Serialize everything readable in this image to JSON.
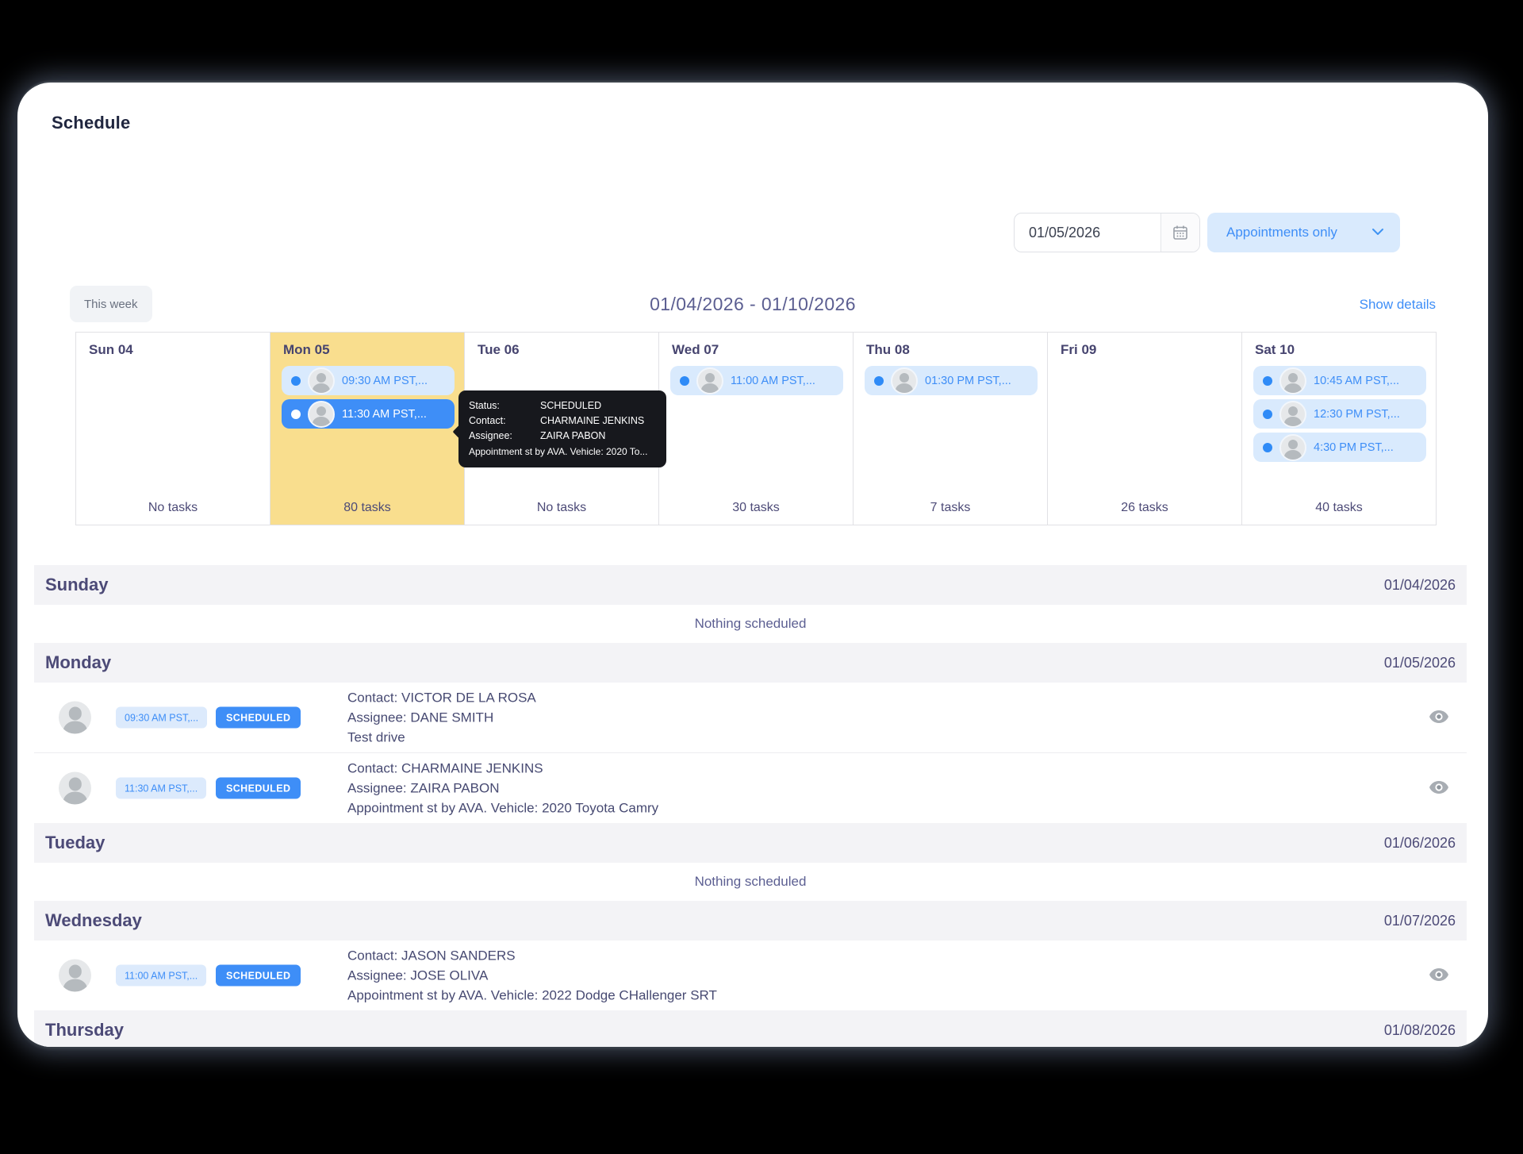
{
  "window": {
    "title": "Schedule"
  },
  "toolbar": {
    "date_input": {
      "value": "01/05/2026",
      "icon": "calendar-icon"
    },
    "filter_dropdown": {
      "value": "Appointments only",
      "icon": "chevron-down-icon"
    }
  },
  "week_nav": {
    "this_week_label": "This week",
    "range_label": "01/04/2026 - 01/10/2026",
    "show_details_label": "Show details"
  },
  "week_grid": {
    "days": [
      {
        "label": "Sun 04",
        "tasks": "No tasks",
        "highlight": false,
        "events": []
      },
      {
        "label": "Mon 05",
        "tasks": "80 tasks",
        "highlight": true,
        "events": [
          {
            "time": "09:30 AM PST,...",
            "selected": false
          },
          {
            "time": "11:30 AM PST,...",
            "selected": true
          }
        ]
      },
      {
        "label": "Tue 06",
        "tasks": "No tasks",
        "highlight": false,
        "events": []
      },
      {
        "label": "Wed 07",
        "tasks": "30 tasks",
        "highlight": false,
        "events": [
          {
            "time": "11:00 AM PST,...",
            "selected": false
          }
        ]
      },
      {
        "label": "Thu 08",
        "tasks": "7 tasks",
        "highlight": false,
        "events": [
          {
            "time": "01:30 PM PST,...",
            "selected": false
          }
        ]
      },
      {
        "label": "Fri 09",
        "tasks": "26 tasks",
        "highlight": false,
        "events": []
      },
      {
        "label": "Sat 10",
        "tasks": "40 tasks",
        "highlight": false,
        "events": [
          {
            "time": "10:45 AM PST,...",
            "selected": false
          },
          {
            "time": "12:30 PM PST,...",
            "selected": false
          },
          {
            "time": "4:30 PM PST,...",
            "selected": false
          }
        ]
      }
    ]
  },
  "tooltip": {
    "rows": [
      {
        "label": "Status:",
        "value": "SCHEDULED"
      },
      {
        "label": "Contact:",
        "value": "CHARMAINE JENKINS"
      },
      {
        "label": "Assignee:",
        "value": "ZAIRA PABON"
      }
    ],
    "note": "Appointment st by AVA. Vehicle: 2020 To..."
  },
  "agenda": {
    "empty_label": "Nothing scheduled",
    "days": [
      {
        "name": "Sunday",
        "date": "01/04/2026",
        "empty": true,
        "items": []
      },
      {
        "name": "Monday",
        "date": "01/05/2026",
        "empty": false,
        "items": [
          {
            "time": "09:30 AM PST,...",
            "status": "SCHEDULED",
            "lines": [
              "Contact: VICTOR DE LA ROSA",
              "Assignee: DANE SMITH",
              "Test drive"
            ]
          },
          {
            "time": "11:30 AM PST,...",
            "status": "SCHEDULED",
            "lines": [
              "Contact: CHARMAINE JENKINS",
              "Assignee: ZAIRA PABON",
              "Appointment st by AVA. Vehicle: 2020 Toyota Camry"
            ]
          }
        ]
      },
      {
        "name": "Tueday",
        "date": "01/06/2026",
        "empty": true,
        "items": []
      },
      {
        "name": "Wednesday",
        "date": "01/07/2026",
        "empty": false,
        "items": [
          {
            "time": "11:00 AM PST,...",
            "status": "SCHEDULED",
            "lines": [
              "Contact: JASON SANDERS",
              "Assignee: JOSE OLIVA",
              "Appointment st by AVA. Vehicle: 2022 Dodge CHallenger SRT"
            ]
          }
        ]
      },
      {
        "name": "Thursday",
        "date": "01/08/2026",
        "empty": false,
        "items": []
      }
    ]
  },
  "colors": {
    "accent_blue": "#3e8ef7",
    "chip_light_blue": "#d9eafd",
    "highlight_yellow": "#f9de8e",
    "header_indigo": "#4c4a77",
    "band_gray": "#f3f3f6",
    "tooltip_black": "#17181d",
    "page_background": "#000000"
  }
}
